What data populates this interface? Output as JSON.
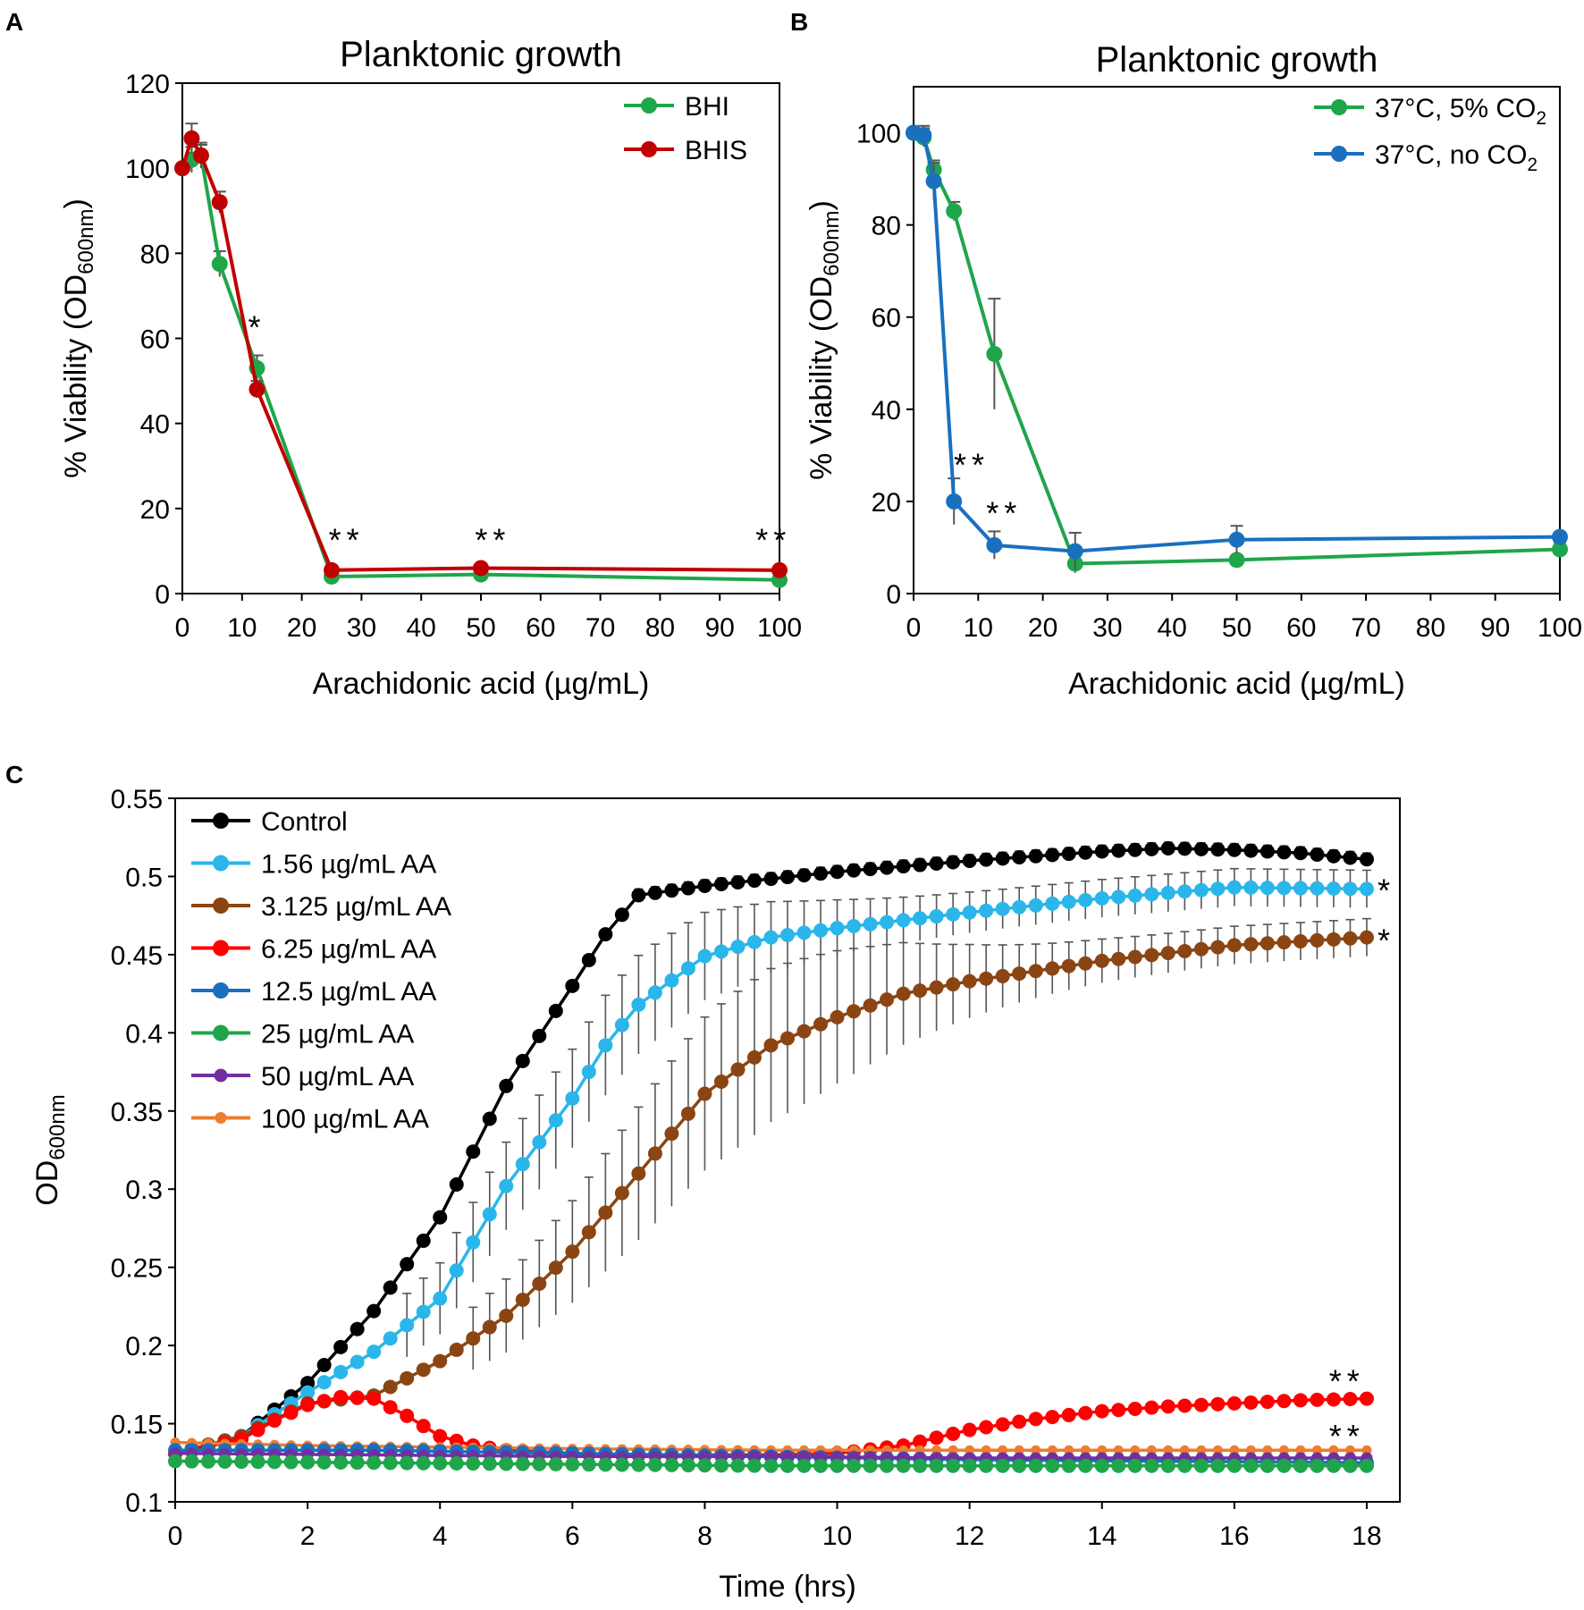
{
  "chart_data": [
    {
      "panel": "A",
      "type": "line",
      "title": "Planktonic growth",
      "xlabel": "Arachidonic acid (µg/mL)",
      "ylabel": "% Viability (OD600nm)",
      "ylabel_main": "% Viability (OD",
      "ylabel_sub": "600nm",
      "ylabel_close": ")",
      "xlim": [
        0,
        100
      ],
      "ylim": [
        0,
        120
      ],
      "xticks": [
        0,
        10,
        20,
        30,
        40,
        50,
        60,
        70,
        80,
        90,
        100
      ],
      "yticks": [
        0,
        20,
        40,
        60,
        80,
        100,
        120
      ],
      "legend_position": "top-right",
      "series": [
        {
          "name": "BHI",
          "color": "#1fa64a",
          "x": [
            0,
            1.56,
            3.125,
            6.25,
            12.5,
            25,
            50,
            100
          ],
          "y": [
            100,
            102,
            103,
            77.5,
            53,
            4,
            4.5,
            3.2
          ],
          "err": [
            1,
            3,
            2.5,
            3,
            3,
            1,
            1,
            0.5
          ]
        },
        {
          "name": "BHIS",
          "color": "#c00000",
          "x": [
            0,
            1.56,
            3.125,
            6.25,
            12.5,
            25,
            50,
            100
          ],
          "y": [
            100,
            107,
            103,
            92,
            48,
            5.5,
            6,
            5.5
          ],
          "err": [
            1,
            3.5,
            3,
            2.5,
            2,
            1,
            1,
            0.8
          ]
        }
      ],
      "annotations": [
        {
          "text": "*",
          "x": 12.5,
          "y": 60
        },
        {
          "text": "**",
          "x": 27.5,
          "y": 10
        },
        {
          "text": "**",
          "x": 52,
          "y": 10
        },
        {
          "text": "**",
          "x": 99,
          "y": 10
        }
      ]
    },
    {
      "panel": "B",
      "type": "line",
      "title": "Planktonic growth",
      "xlabel": "Arachidonic acid (µg/mL)",
      "ylabel": "% Viability (OD600nm)",
      "ylabel_main": "% Viability (OD",
      "ylabel_sub": "600nm",
      "ylabel_close": ")",
      "xlim": [
        0,
        100
      ],
      "ylim": [
        0,
        110
      ],
      "xticks": [
        0,
        10,
        20,
        30,
        40,
        50,
        60,
        70,
        80,
        90,
        100
      ],
      "yticks": [
        0,
        20,
        40,
        60,
        80,
        100
      ],
      "legend_position": "top-right",
      "series": [
        {
          "name": "37°C, 5% CO2",
          "legend_main": "37°C, 5% CO",
          "legend_sub": "2",
          "color": "#1fa64a",
          "x": [
            0,
            1.56,
            3.125,
            6.25,
            12.5,
            25,
            50,
            100
          ],
          "y": [
            100,
            99,
            92,
            83,
            52,
            6.5,
            7.3,
            9.6
          ],
          "err": [
            1,
            2,
            2,
            2,
            12,
            2,
            1,
            1.5
          ]
        },
        {
          "name": "37°C, no CO2",
          "legend_main": "37°C, no CO",
          "legend_sub": "2",
          "color": "#1a6fbf",
          "x": [
            0,
            1.56,
            3.125,
            6.25,
            12.5,
            25,
            50,
            100
          ],
          "y": [
            100,
            99.5,
            89.5,
            20,
            10.5,
            9.2,
            11.7,
            12.3
          ],
          "err": [
            1,
            2,
            4,
            5,
            3,
            4,
            3,
            1
          ]
        }
      ],
      "annotations": [
        {
          "text": "**",
          "x": 9,
          "y": 25.5
        },
        {
          "text": "**",
          "x": 14,
          "y": 15
        }
      ]
    },
    {
      "panel": "C",
      "type": "line",
      "title": "",
      "xlabel": "Time (hrs)",
      "ylabel": "OD600nm",
      "ylabel_main": "OD",
      "ylabel_sub": "600nm",
      "xlim": [
        0,
        18.5
      ],
      "ylim": [
        0.1,
        0.55
      ],
      "xticks": [
        0,
        2,
        4,
        6,
        8,
        10,
        12,
        14,
        16,
        18
      ],
      "yticks": [
        0.1,
        0.15,
        0.2,
        0.25,
        0.3,
        0.35,
        0.4,
        0.45,
        0.5,
        0.55
      ],
      "ytick_labels": [
        "0.1",
        "0.15",
        "0.2",
        "0.25",
        "0.3",
        "0.35",
        "0.4",
        "0.45",
        "0.5",
        "0.55"
      ],
      "time_step_hours": 0.25,
      "legend_position": "top-left",
      "series": [
        {
          "name": "Control",
          "color": "#000000",
          "marker_radius": 8,
          "x": [
            0,
            1,
            2,
            3,
            4,
            5,
            6,
            6.5,
            7,
            8,
            10,
            12,
            14,
            15,
            16,
            17,
            18
          ],
          "y": [
            0.131,
            0.142,
            0.176,
            0.222,
            0.282,
            0.366,
            0.43,
            0.463,
            0.488,
            0.494,
            0.503,
            0.51,
            0.516,
            0.518,
            0.517,
            0.515,
            0.511
          ],
          "err_from": 7,
          "err": 0.004
        },
        {
          "name": "1.56 µg/mL AA",
          "color": "#2ab6ea",
          "marker_radius": 8,
          "x": [
            0,
            1,
            2,
            3,
            4,
            5,
            6,
            6.5,
            7,
            8,
            9,
            10,
            12,
            14,
            16,
            18
          ],
          "y": [
            0.131,
            0.142,
            0.17,
            0.196,
            0.23,
            0.302,
            0.358,
            0.392,
            0.418,
            0.449,
            0.461,
            0.467,
            0.477,
            0.486,
            0.493,
            0.492
          ],
          "err_from": 3.5,
          "err": 0.012,
          "err_max": 0.032
        },
        {
          "name": "3.125 µg/mL AA",
          "color": "#8b4513",
          "marker_radius": 8,
          "x": [
            0,
            1,
            2,
            3,
            4,
            5,
            6,
            7,
            8,
            9,
            10,
            11,
            12,
            14,
            16,
            18
          ],
          "y": [
            0.131,
            0.142,
            0.163,
            0.168,
            0.19,
            0.219,
            0.26,
            0.31,
            0.361,
            0.392,
            0.41,
            0.425,
            0.433,
            0.446,
            0.456,
            0.461
          ],
          "err_from": 4.5,
          "err": 0.012,
          "err_max": 0.05
        },
        {
          "name": "6.25 µg/mL AA",
          "color": "#ff0000",
          "marker_radius": 8,
          "x": [
            0,
            1,
            1.5,
            2,
            2.5,
            3,
            3.5,
            4,
            4.5,
            5,
            6,
            7,
            8,
            9,
            10,
            11,
            12,
            13,
            14,
            15,
            16,
            17,
            18
          ],
          "y": [
            0.131,
            0.14,
            0.152,
            0.162,
            0.167,
            0.166,
            0.155,
            0.142,
            0.136,
            0.133,
            0.131,
            0.13,
            0.13,
            0.13,
            0.131,
            0.136,
            0.146,
            0.153,
            0.158,
            0.161,
            0.163,
            0.165,
            0.166
          ],
          "err_from": 99,
          "err": 0.002
        },
        {
          "name": "12.5 µg/mL AA",
          "color": "#1a6fbf",
          "marker_radius": 8,
          "x": [
            0,
            3,
            6,
            9,
            12,
            15,
            18
          ],
          "y": [
            0.133,
            0.133,
            0.131,
            0.129,
            0.127,
            0.126,
            0.125
          ],
          "err_from": 99,
          "err": 0.002
        },
        {
          "name": "25 µg/mL AA",
          "color": "#1fa64a",
          "marker_radius": 8,
          "x": [
            0,
            3,
            6,
            9,
            12,
            15,
            18
          ],
          "y": [
            0.126,
            0.125,
            0.124,
            0.123,
            0.123,
            0.123,
            0.123
          ],
          "err_from": 99,
          "err": 0.002
        },
        {
          "name": "50 µg/mL AA",
          "color": "#7030a0",
          "marker_radius": 6.5,
          "x": [
            0,
            3,
            6,
            9,
            12,
            15,
            18
          ],
          "y": [
            0.131,
            0.13,
            0.129,
            0.129,
            0.128,
            0.128,
            0.128
          ],
          "err_from": 99,
          "err": 0.002
        },
        {
          "name": "100 µg/mL AA",
          "color": "#ed7d31",
          "marker_radius": 5.5,
          "x": [
            0,
            2,
            4,
            6,
            9,
            12,
            15,
            18
          ],
          "y": [
            0.138,
            0.136,
            0.135,
            0.134,
            0.133,
            0.133,
            0.133,
            0.133
          ],
          "err_from": 99,
          "err": 0.002
        }
      ],
      "annotations": [
        {
          "text": "*",
          "x": 18.3,
          "y": 0.492
        },
        {
          "text": "*",
          "x": 18.3,
          "y": 0.46
        },
        {
          "text": "**",
          "x": 17.7,
          "y": 0.178
        },
        {
          "text": "**",
          "x": 17.7,
          "y": 0.143
        }
      ]
    }
  ]
}
